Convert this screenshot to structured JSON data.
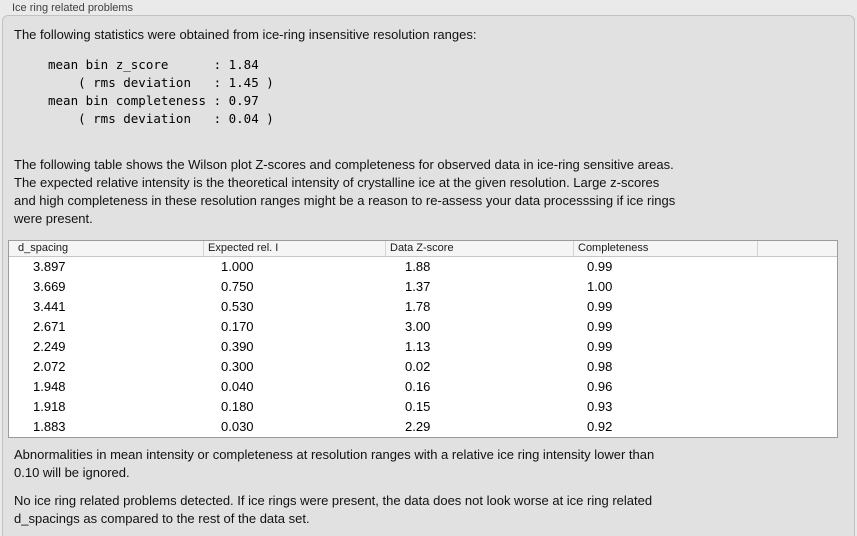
{
  "group": {
    "title": "Ice ring related problems"
  },
  "intro": "The following statistics were obtained from ice-ring insensitive resolution ranges:",
  "stats_block": "mean bin z_score      : 1.84\n    ( rms deviation   : 1.45 )\nmean bin completeness : 0.97\n    ( rms deviation   : 0.04 )",
  "table_intro": "The following table shows the Wilson plot Z-scores and completeness for observed data in ice-ring sensitive areas.\nThe expected relative intensity is the theoretical intensity of crystalline ice at the given resolution. Large z-scores\nand high completeness in these resolution ranges might be a reason to re-assess your data processsing if ice rings\nwere present.",
  "table": {
    "columns": [
      "d_spacing",
      "Expected rel. I",
      "Data Z-score",
      "Completeness"
    ],
    "rows": [
      [
        "3.897",
        "1.000",
        "1.88",
        "0.99"
      ],
      [
        "3.669",
        "0.750",
        "1.37",
        "1.00"
      ],
      [
        "3.441",
        "0.530",
        "1.78",
        "0.99"
      ],
      [
        "2.671",
        "0.170",
        "3.00",
        "0.99"
      ],
      [
        "2.249",
        "0.390",
        "1.13",
        "0.99"
      ],
      [
        "2.072",
        "0.300",
        "0.02",
        "0.98"
      ],
      [
        "1.948",
        "0.040",
        "0.16",
        "0.96"
      ],
      [
        "1.918",
        "0.180",
        "0.15",
        "0.93"
      ],
      [
        "1.883",
        "0.030",
        "2.29",
        "0.92"
      ]
    ]
  },
  "note_ignore": "Abnormalities in mean intensity or completeness at resolution ranges with a relative ice ring intensity lower than\n0.10 will be ignored.",
  "conclusion": "No ice ring related problems detected. If ice rings were present, the data does not look worse at ice ring related\nd_spacings as compared to the rest of the data set."
}
